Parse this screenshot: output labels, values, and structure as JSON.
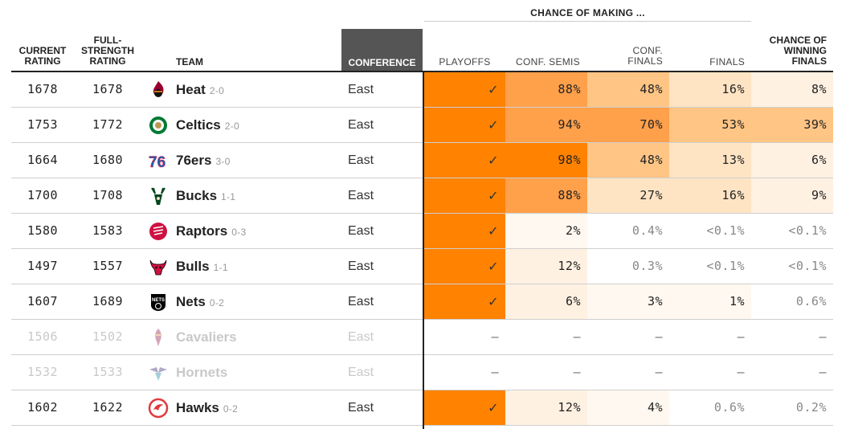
{
  "header": {
    "group_title": "CHANCE OF MAKING ...",
    "current_rating": [
      "CURRENT",
      "RATING"
    ],
    "full_strength": [
      "FULL-",
      "STRENGTH",
      "RATING"
    ],
    "team": "TEAM",
    "conference": "CONFERENCE",
    "playoffs": "PLAYOFFS",
    "conf_semis": "CONF. SEMIS",
    "conf_finals": [
      "CONF.",
      "FINALS"
    ],
    "finals": "FINALS",
    "win_finals": [
      "CHANCE OF",
      "WINNING",
      "FINALS"
    ]
  },
  "colors": {
    "orange_strong": "#ff8200",
    "orange_mid": "#ffa04a",
    "orange_light": "#ffc585",
    "orange_pale": "#ffe4c4",
    "orange_faint": "#fff1e2",
    "orange_faintest": "#fff8f0",
    "conference_bg": "#555555"
  },
  "rows": [
    {
      "current": "1678",
      "full": "1678",
      "team": "Heat",
      "record": "2-0",
      "logo": "heat-logo",
      "conference": "East",
      "eliminated": false,
      "probs": [
        "✓",
        "88%",
        "48%",
        "16%",
        "8%"
      ],
      "shades": [
        "orange_strong",
        "orange_mid",
        "orange_light",
        "orange_pale",
        "orange_faint"
      ],
      "dim": [
        false,
        false,
        false,
        false,
        false
      ]
    },
    {
      "current": "1753",
      "full": "1772",
      "team": "Celtics",
      "record": "2-0",
      "logo": "celtics-logo",
      "conference": "East",
      "eliminated": false,
      "probs": [
        "✓",
        "94%",
        "70%",
        "53%",
        "39%"
      ],
      "shades": [
        "orange_strong",
        "orange_mid",
        "orange_mid",
        "orange_light",
        "orange_light"
      ],
      "dim": [
        false,
        false,
        false,
        false,
        false
      ]
    },
    {
      "current": "1664",
      "full": "1680",
      "team": "76ers",
      "record": "3-0",
      "logo": "sixers-logo",
      "conference": "East",
      "eliminated": false,
      "probs": [
        "✓",
        "98%",
        "48%",
        "13%",
        "6%"
      ],
      "shades": [
        "orange_strong",
        "orange_strong",
        "orange_light",
        "orange_pale",
        "orange_faint"
      ],
      "dim": [
        false,
        false,
        false,
        false,
        false
      ]
    },
    {
      "current": "1700",
      "full": "1708",
      "team": "Bucks",
      "record": "1-1",
      "logo": "bucks-logo",
      "conference": "East",
      "eliminated": false,
      "probs": [
        "✓",
        "88%",
        "27%",
        "16%",
        "9%"
      ],
      "shades": [
        "orange_strong",
        "orange_mid",
        "orange_pale",
        "orange_pale",
        "orange_faint"
      ],
      "dim": [
        false,
        false,
        false,
        false,
        false
      ]
    },
    {
      "current": "1580",
      "full": "1583",
      "team": "Raptors",
      "record": "0-3",
      "logo": "raptors-logo",
      "conference": "East",
      "eliminated": false,
      "probs": [
        "✓",
        "2%",
        "0.4%",
        "<0.1%",
        "<0.1%"
      ],
      "shades": [
        "orange_strong",
        "orange_faintest",
        "none",
        "none",
        "none"
      ],
      "dim": [
        false,
        false,
        true,
        true,
        true
      ]
    },
    {
      "current": "1497",
      "full": "1557",
      "team": "Bulls",
      "record": "1-1",
      "logo": "bulls-logo",
      "conference": "East",
      "eliminated": false,
      "probs": [
        "✓",
        "12%",
        "0.3%",
        "<0.1%",
        "<0.1%"
      ],
      "shades": [
        "orange_strong",
        "orange_faint",
        "none",
        "none",
        "none"
      ],
      "dim": [
        false,
        false,
        true,
        true,
        true
      ]
    },
    {
      "current": "1607",
      "full": "1689",
      "team": "Nets",
      "record": "0-2",
      "logo": "nets-logo",
      "conference": "East",
      "eliminated": false,
      "probs": [
        "✓",
        "6%",
        "3%",
        "1%",
        "0.6%"
      ],
      "shades": [
        "orange_strong",
        "orange_faint",
        "orange_faintest",
        "orange_faintest",
        "none"
      ],
      "dim": [
        false,
        false,
        false,
        false,
        true
      ]
    },
    {
      "current": "1506",
      "full": "1502",
      "team": "Cavaliers",
      "record": "",
      "logo": "cavaliers-logo",
      "conference": "East",
      "eliminated": true,
      "probs": [
        "—",
        "—",
        "—",
        "—",
        "—"
      ],
      "shades": [
        "none",
        "none",
        "none",
        "none",
        "none"
      ],
      "dim": [
        false,
        false,
        false,
        false,
        false
      ]
    },
    {
      "current": "1532",
      "full": "1533",
      "team": "Hornets",
      "record": "",
      "logo": "hornets-logo",
      "conference": "East",
      "eliminated": true,
      "probs": [
        "—",
        "—",
        "—",
        "—",
        "—"
      ],
      "shades": [
        "none",
        "none",
        "none",
        "none",
        "none"
      ],
      "dim": [
        false,
        false,
        false,
        false,
        false
      ]
    },
    {
      "current": "1602",
      "full": "1622",
      "team": "Hawks",
      "record": "0-2",
      "logo": "hawks-logo",
      "conference": "East",
      "eliminated": false,
      "probs": [
        "✓",
        "12%",
        "4%",
        "0.6%",
        "0.2%"
      ],
      "shades": [
        "orange_strong",
        "orange_faint",
        "orange_faintest",
        "none",
        "none"
      ],
      "dim": [
        false,
        false,
        false,
        true,
        true
      ]
    }
  ]
}
